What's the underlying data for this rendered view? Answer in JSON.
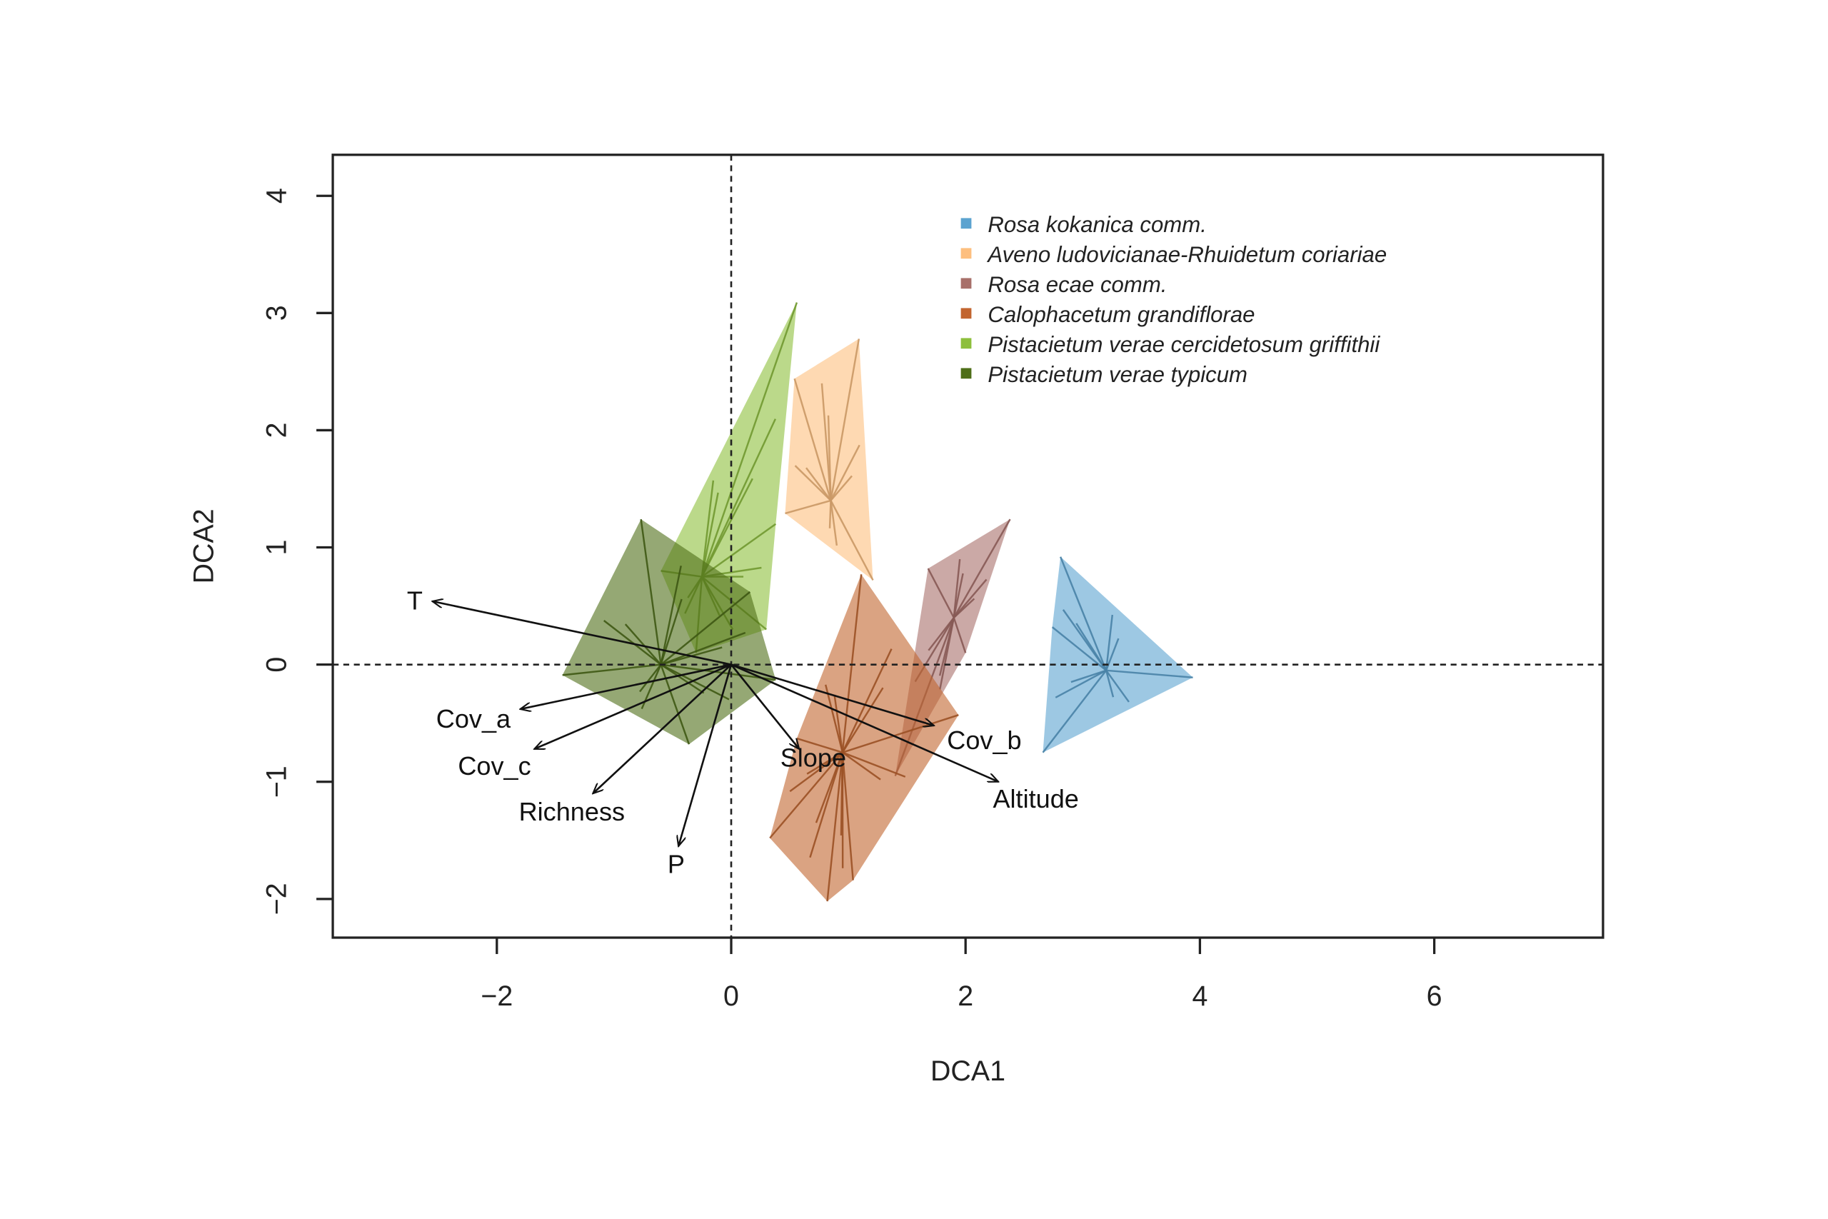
{
  "chart_data": {
    "type": "scatter",
    "title": "",
    "xlabel": "DCA1",
    "ylabel": "DCA2",
    "xlim": [
      -3.4,
      7.44
    ],
    "ylim": [
      -2.33,
      4.35
    ],
    "xticks": [
      -2,
      0,
      2,
      4,
      6
    ],
    "yticks": [
      -2,
      -1,
      0,
      1,
      2,
      3,
      4
    ],
    "reference_lines": {
      "x": 0,
      "y": 0,
      "style": "dashed"
    },
    "legend_position": "top-right",
    "groups": [
      {
        "name": "Rosa kokanica comm.",
        "color": "#5ba3d0",
        "centroid": [
          3.2,
          -0.05
        ],
        "hull": [
          [
            2.81,
            0.92
          ],
          [
            3.94,
            -0.11
          ],
          [
            2.66,
            -0.75
          ],
          [
            2.74,
            0.32
          ]
        ]
      },
      {
        "name": "Aveno ludovicianae-Rhuidetum coriariae",
        "color": "#fdbf7f",
        "centroid": [
          0.85,
          1.4
        ],
        "hull": [
          [
            1.09,
            2.78
          ],
          [
            1.21,
            0.72
          ],
          [
            0.46,
            1.29
          ],
          [
            0.54,
            2.44
          ]
        ]
      },
      {
        "name": "Rosa ecae comm.",
        "color": "#a8706a",
        "centroid": [
          1.9,
          0.4
        ],
        "hull": [
          [
            2.38,
            1.24
          ],
          [
            2.0,
            0.1
          ],
          [
            1.4,
            -0.95
          ],
          [
            1.68,
            0.82
          ]
        ]
      },
      {
        "name": "Calophacetum grandiflorae",
        "color": "#c2652f",
        "centroid": [
          0.95,
          -0.75
        ],
        "hull": [
          [
            1.11,
            0.77
          ],
          [
            1.94,
            -0.43
          ],
          [
            1.04,
            -1.84
          ],
          [
            0.82,
            -2.02
          ],
          [
            0.33,
            -1.48
          ],
          [
            0.56,
            -0.63
          ]
        ]
      },
      {
        "name": "Pistacietum verae cercidetosum griffithii",
        "color": "#8dbf3c",
        "centroid": [
          -0.25,
          0.75
        ],
        "hull": [
          [
            0.56,
            3.09
          ],
          [
            0.38,
            1.2
          ],
          [
            0.3,
            0.3
          ],
          [
            -0.3,
            0.1
          ],
          [
            -0.6,
            0.8
          ]
        ]
      },
      {
        "name": "Pistacietum verae typicum",
        "color": "#4e6e18",
        "centroid": [
          -0.6,
          0.0
        ],
        "hull": [
          [
            -0.77,
            1.24
          ],
          [
            0.16,
            0.62
          ],
          [
            0.38,
            -0.13
          ],
          [
            -0.36,
            -0.68
          ],
          [
            -1.44,
            -0.09
          ]
        ]
      }
    ],
    "vectors": [
      {
        "label": "T",
        "x": -2.55,
        "y": 0.54,
        "lx": -2.7,
        "ly": 0.55
      },
      {
        "label": "Cov_a",
        "x": -1.8,
        "y": -0.38,
        "lx": -2.2,
        "ly": -0.46
      },
      {
        "label": "Cov_c",
        "x": -1.68,
        "y": -0.72,
        "lx": -2.02,
        "ly": -0.86
      },
      {
        "label": "Richness",
        "x": -1.18,
        "y": -1.1,
        "lx": -1.36,
        "ly": -1.25
      },
      {
        "label": "P",
        "x": -0.45,
        "y": -1.55,
        "lx": -0.47,
        "ly": -1.7
      },
      {
        "label": "Slope",
        "x": 0.58,
        "y": -0.72,
        "lx": 0.7,
        "ly": -0.79
      },
      {
        "label": "Cov_b",
        "x": 1.73,
        "y": -0.52,
        "lx": 2.16,
        "ly": -0.64
      },
      {
        "label": "Altitude",
        "x": 2.28,
        "y": -1.0,
        "lx": 2.6,
        "ly": -1.14
      }
    ]
  }
}
